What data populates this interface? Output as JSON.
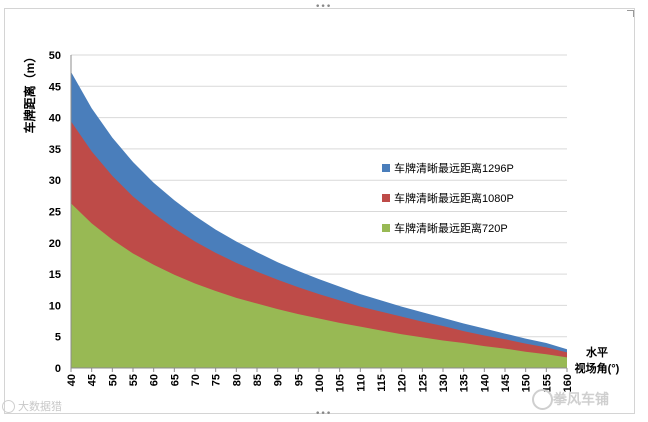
{
  "chart_data": {
    "type": "area",
    "title": "",
    "ylabel": "车牌距离（m）",
    "xlabel_line1": "水平",
    "xlabel_line2": "视场角(°)",
    "ylim": [
      0,
      50
    ],
    "yticks": [
      0,
      5,
      10,
      15,
      20,
      25,
      30,
      35,
      40,
      45,
      50
    ],
    "x": [
      40,
      45,
      50,
      55,
      60,
      65,
      70,
      75,
      80,
      85,
      90,
      95,
      100,
      105,
      110,
      115,
      120,
      125,
      130,
      135,
      140,
      145,
      150,
      155,
      160
    ],
    "series": [
      {
        "name": "车牌清晰最远距离1296P",
        "color": "#4a7ebb",
        "values": [
          47.3,
          41.5,
          36.8,
          32.9,
          29.6,
          26.8,
          24.3,
          22.1,
          20.2,
          18.5,
          16.9,
          15.5,
          14.2,
          13.0,
          11.8,
          10.8,
          9.8,
          8.9,
          8.0,
          7.1,
          6.3,
          5.5,
          4.7,
          4.0,
          3.0
        ]
      },
      {
        "name": "车牌清晰最远距离1080P",
        "color": "#be4b48",
        "values": [
          39.4,
          34.6,
          30.7,
          27.4,
          24.7,
          22.3,
          20.2,
          18.4,
          16.8,
          15.4,
          14.1,
          12.9,
          11.8,
          10.8,
          9.8,
          9.0,
          8.2,
          7.4,
          6.7,
          5.9,
          5.2,
          4.6,
          3.9,
          3.3,
          2.5
        ]
      },
      {
        "name": "车牌清晰最远距离720P",
        "color": "#98b954",
        "values": [
          26.3,
          23.1,
          20.5,
          18.3,
          16.5,
          14.9,
          13.5,
          12.3,
          11.2,
          10.3,
          9.4,
          8.6,
          7.9,
          7.2,
          6.6,
          6.0,
          5.4,
          4.9,
          4.4,
          4.0,
          3.5,
          3.1,
          2.6,
          2.2,
          1.7
        ]
      }
    ],
    "grid": "horizontal",
    "legend_position": "right"
  },
  "watermarks": {
    "left": "大数据猎",
    "right": "拳风车铺"
  }
}
